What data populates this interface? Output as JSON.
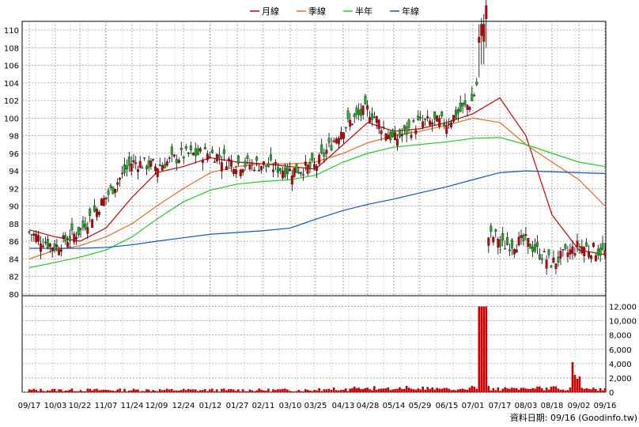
{
  "chart_data": {
    "type": "candlestick",
    "legend": [
      {
        "label": "月線",
        "color": "#cc0000"
      },
      {
        "label": "季線",
        "color": "#e07020"
      },
      {
        "label": "半年",
        "color": "#22cc22"
      },
      {
        "label": "年線",
        "color": "#1155cc"
      }
    ],
    "legend_position": "top-center",
    "grid": true,
    "price_axis": {
      "ticks": [
        80,
        82,
        84,
        86,
        88,
        90,
        92,
        94,
        96,
        98,
        100,
        102,
        104,
        106,
        108,
        110
      ],
      "range": [
        79,
        111
      ]
    },
    "volume_axis": {
      "ticks": [
        "0",
        "2,000",
        "4,000",
        "6,000",
        "8,000",
        "10,000",
        "12,000"
      ],
      "tick_values": [
        0,
        2000,
        4000,
        6000,
        8000,
        10000,
        12000
      ],
      "range": [
        0,
        13500
      ]
    },
    "x_tick_labels": [
      "09/17",
      "10/03",
      "10/22",
      "11/07",
      "11/24",
      "12/09",
      "12/24",
      "01/12",
      "01/27",
      "02/11",
      "03/10",
      "03/25",
      "04/13",
      "04/28",
      "05/14",
      "05/29",
      "06/15",
      "07/01",
      "07/17",
      "08/03",
      "08/18",
      "09/02",
      "09/16"
    ],
    "up_color": "#cc0000",
    "down_color": "#22aa22",
    "price_key_points": [
      {
        "date": "09/17",
        "close": 87.0
      },
      {
        "date": "10/03",
        "close": 85.3
      },
      {
        "date": "10/22",
        "close": 87.2
      },
      {
        "date": "11/07",
        "close": 91.0
      },
      {
        "date": "11/24",
        "close": 95.0
      },
      {
        "date": "12/09",
        "close": 94.5
      },
      {
        "date": "12/24",
        "close": 95.8
      },
      {
        "date": "01/12",
        "close": 96.0
      },
      {
        "date": "01/27",
        "close": 94.8
      },
      {
        "date": "02/11",
        "close": 94.7
      },
      {
        "date": "03/10",
        "close": 94.0
      },
      {
        "date": "03/25",
        "close": 94.5
      },
      {
        "date": "04/13",
        "close": 99.0
      },
      {
        "date": "04/28",
        "close": 101.0
      },
      {
        "date": "05/14",
        "close": 97.5
      },
      {
        "date": "05/29",
        "close": 99.5
      },
      {
        "date": "06/15",
        "close": 99.5
      },
      {
        "date": "07/01",
        "close": 102.0
      },
      {
        "date": "07/09",
        "close": 108.5
      },
      {
        "date": "07/17",
        "close": 85.5
      },
      {
        "date": "08/03",
        "close": 86.0
      },
      {
        "date": "08/18",
        "close": 83.5
      },
      {
        "date": "09/02",
        "close": 85.5
      },
      {
        "date": "09/16",
        "close": 84.7
      }
    ],
    "moving_averages": {
      "月線": [
        87.3,
        86.5,
        86.0,
        87.5,
        91.0,
        93.8,
        94.5,
        95.5,
        95.0,
        94.8,
        94.5,
        94.2,
        97.0,
        99.5,
        98.5,
        98.8,
        99.5,
        100.5,
        102.3,
        98.0,
        89.0,
        85.0,
        84.5
      ],
      "季線": [
        84.0,
        85.0,
        85.5,
        86.5,
        88.0,
        90.0,
        92.0,
        93.8,
        94.5,
        94.8,
        94.8,
        95.0,
        96.0,
        97.2,
        98.0,
        98.5,
        99.2,
        100.0,
        99.5,
        97.0,
        95.0,
        93.0,
        90.0
      ],
      "半年": [
        83.0,
        83.6,
        84.2,
        85.0,
        86.5,
        88.5,
        90.5,
        91.8,
        92.5,
        92.8,
        93.0,
        93.5,
        95.0,
        96.0,
        96.7,
        97.0,
        97.3,
        97.7,
        97.8,
        97.0,
        96.0,
        95.0,
        94.5
      ],
      "年線": [
        85.2,
        85.2,
        85.2,
        85.3,
        85.6,
        86.0,
        86.4,
        86.8,
        87.0,
        87.2,
        87.5,
        88.5,
        89.5,
        90.2,
        90.8,
        91.5,
        92.2,
        93.0,
        93.8,
        94.0,
        93.9,
        93.8,
        93.7
      ]
    },
    "volume_spikes": [
      {
        "date": "07/09",
        "volume": 12000
      },
      {
        "date": "08/30",
        "volume": 4200
      }
    ],
    "source_text": "資料日期: 09/16 (Goodinfo.tw)"
  }
}
